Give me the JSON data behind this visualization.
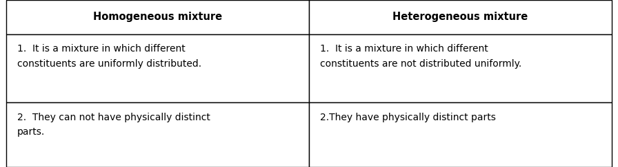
{
  "col1_header": "Homogeneous mixture",
  "col2_header": "Heterogeneous mixture",
  "rows": [
    {
      "col1": "1.  It is a mixture in which different\nconstituents are uniformly distributed.",
      "col2": "1.  It is a mixture in which different\nconstituents are not distributed uniformly."
    },
    {
      "col1": "2.  They can not have physically distinct\nparts.",
      "col2": "2.They have physically distinct parts"
    }
  ],
  "header_bg": "#ffffff",
  "body_bg": "#ffffff",
  "border_color": "#000000",
  "header_fontsize": 10.5,
  "body_fontsize": 10,
  "text_color": "#000000",
  "fig_width": 8.96,
  "fig_height": 2.43,
  "dpi": 100
}
